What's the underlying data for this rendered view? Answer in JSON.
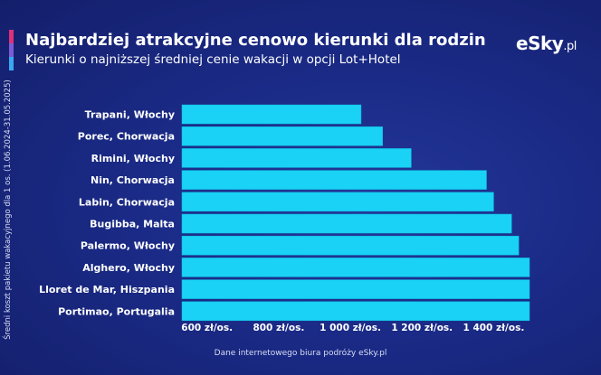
{
  "header": {
    "title": "Najbardziej atrakcyjne cenowo kierunki dla rodzin",
    "subtitle": "Kierunki o najniższej średniej cenie wakacji w opcji Lot+Hotel",
    "logo_main": "eSky",
    "logo_tld": ".pl"
  },
  "footer": {
    "source": "Dane internetowego biura podróży eSky.pl"
  },
  "chart_data": {
    "type": "bar",
    "orientation": "horizontal",
    "title": "Najbardziej atrakcyjne cenowo kierunki dla rodzin",
    "subtitle": "Kierunki o najniższej średniej cenie wakacji w opcji Lot+Hotel",
    "ylabel": "Średni koszt pakietu wakacyjnego dla 1 os. (1.06.2024-31.05.2025)",
    "xlabel": "",
    "categories": [
      "Trapani, Włochy",
      "Porec, Chorwacja",
      "Rimini, Włochy",
      "Nin, Chorwacja",
      "Labin, Chorwacja",
      "Bugibba, Malta",
      "Palermo, Włochy",
      "Alghero, Włochy",
      "Lloret de Mar, Hiszpania",
      "Portimao, Portugalia"
    ],
    "values": [
      1030,
      1090,
      1170,
      1380,
      1400,
      1450,
      1470,
      1500,
      1500,
      1500
    ],
    "xlim": [
      530,
      1500
    ],
    "x_ticks": [
      600,
      800,
      1000,
      1200,
      1400
    ],
    "x_tick_labels": [
      "600 zł/os.",
      "800 zł/os.",
      "1 000 zł/os.",
      "1 200 zł/os.",
      "1 400 zł/os."
    ],
    "grid": false,
    "legend": "none",
    "colors": {
      "bar": "#19d2f5",
      "bar_edge": "#0fb8dc",
      "background": "#1a2a86",
      "text": "#ffffff"
    }
  }
}
